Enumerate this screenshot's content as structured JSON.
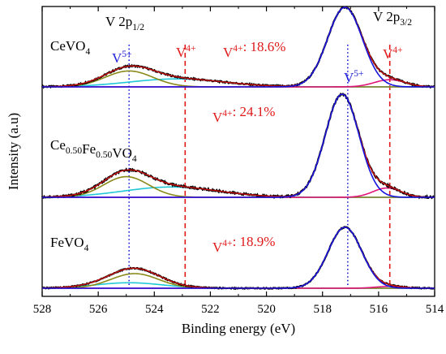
{
  "chart_data": {
    "type": "line",
    "xlabel": "Binding energy (eV)",
    "ylabel": "Intensity (a.u)",
    "xlim": [
      528,
      514
    ],
    "x_reversed": true,
    "xticks": [
      528,
      526,
      524,
      522,
      520,
      518,
      516,
      514
    ],
    "xtick_labels": [
      "528",
      "526",
      "524",
      "522",
      "520",
      "518",
      "516",
      "514"
    ],
    "grid": false,
    "peak_labels": {
      "p12": {
        "main": "V 2p",
        "sub": "1/2"
      },
      "p32": {
        "main": "V 2p",
        "sub": "3/2"
      },
      "v5_left": {
        "main": "V",
        "sup": "5+"
      },
      "v4_left": {
        "main": "V",
        "sup": "4+"
      },
      "v5_right": {
        "main": "V",
        "sup": "5+"
      },
      "v4_right": {
        "main": "V",
        "sup": "4+"
      }
    },
    "reference_lines": [
      {
        "x": 524.9,
        "style": "dotted",
        "color": "#1f1fd8"
      },
      {
        "x": 522.9,
        "style": "dashed",
        "color": "#e01818"
      },
      {
        "x": 517.1,
        "style": "dotted",
        "color": "#1f1fd8"
      },
      {
        "x": 515.6,
        "style": "dashed",
        "color": "#e01818"
      }
    ],
    "colors": {
      "raw": "#000000",
      "envelope": "#cc1111",
      "v5_fit": "#1515dd",
      "v4_fit": "#e0157a",
      "sat_fit_1": "#8a8a1a",
      "sat_fit_2": "#20c8d8",
      "baseline": "#d020d0"
    },
    "panels": [
      {
        "sample": {
          "parts": [
            {
              "t": "CeVO"
            },
            {
              "t": "4",
              "sub": true
            }
          ]
        },
        "v4_text": {
          "main": "V",
          "sup": "4+",
          "rest": ": 18.6%"
        },
        "v4_percent": 18.6,
        "peaks": [
          {
            "name": "V5+ 2p3/2",
            "center": 517.2,
            "height": 1.0,
            "width": 0.62
          },
          {
            "name": "V4+ 2p3/2",
            "center": 515.6,
            "height": 0.09,
            "width": 0.55
          },
          {
            "name": "V5+ 2p1/2",
            "center": 524.9,
            "height": 0.2,
            "width": 0.85
          },
          {
            "name": "2p1/2 satellite",
            "center": 523.2,
            "height": 0.1,
            "width": 1.7
          }
        ]
      },
      {
        "sample": {
          "parts": [
            {
              "t": "Ce"
            },
            {
              "t": "0.50",
              "sub": true
            },
            {
              "t": "Fe"
            },
            {
              "t": "0.50",
              "sub": true
            },
            {
              "t": "VO"
            },
            {
              "t": "4",
              "sub": true
            }
          ]
        },
        "v4_text": {
          "main": "V",
          "sup": "4+",
          "rest": ": 24.1%"
        },
        "v4_percent": 24.1,
        "peaks": [
          {
            "name": "V5+ 2p3/2",
            "center": 517.3,
            "height": 1.0,
            "width": 0.6
          },
          {
            "name": "V4+ 2p3/2",
            "center": 515.7,
            "height": 0.09,
            "width": 0.5
          },
          {
            "name": "V5+ 2p1/2",
            "center": 525.0,
            "height": 0.2,
            "width": 0.8
          },
          {
            "name": "2p1/2 satellite",
            "center": 523.4,
            "height": 0.1,
            "width": 1.7
          }
        ]
      },
      {
        "sample": {
          "parts": [
            {
              "t": "FeVO"
            },
            {
              "t": "4",
              "sub": true
            }
          ]
        },
        "v4_text": {
          "main": "V",
          "sup": "4+",
          "rest": ": 18.9%"
        },
        "v4_percent": 18.9,
        "peaks": [
          {
            "name": "V5+ 2p3/2",
            "center": 517.2,
            "height": 1.0,
            "width": 0.6
          },
          {
            "name": "V4+ 2p3/2",
            "center": 515.6,
            "height": 0.03,
            "width": 0.5
          },
          {
            "name": "V5+ 2p1/2",
            "center": 524.7,
            "height": 0.24,
            "width": 0.85
          },
          {
            "name": "2p1/2 satellite",
            "center": 524.9,
            "height": 0.09,
            "width": 1.2
          }
        ]
      }
    ]
  }
}
